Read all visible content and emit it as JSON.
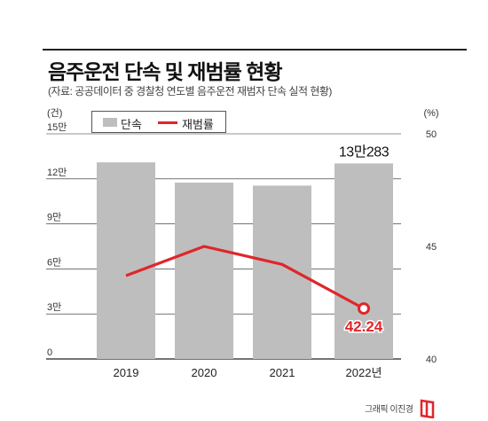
{
  "header": {
    "title": "음주운전 단속 및 재범률 현황",
    "subtitle": "(자료: 공공데이터 중 경찰청 연도별 음주운전 재범자 단속 실적 현황)"
  },
  "legend": {
    "bar_label": "단속",
    "line_label": "재범률"
  },
  "footer": {
    "credit": "그래픽 이진경"
  },
  "colors": {
    "bar": "#bebebe",
    "line": "#e0262a",
    "grid": "#222222"
  },
  "chart_data": {
    "type": "bar",
    "categories": [
      "2019",
      "2020",
      "2021",
      "2022년"
    ],
    "left_axis": {
      "unit_label": "(건)",
      "ticks": [
        0,
        30000,
        60000,
        90000,
        120000,
        150000
      ],
      "tick_labels": [
        "0",
        "3만",
        "6만",
        "9만",
        "12만",
        "15만"
      ],
      "ylim": [
        0,
        150000
      ]
    },
    "right_axis": {
      "unit_label": "(%)",
      "ticks": [
        40,
        45,
        50
      ],
      "tick_labels": [
        "40",
        "45",
        "50"
      ],
      "ylim": [
        40,
        50
      ]
    },
    "series": [
      {
        "name": "단속",
        "type": "bar",
        "axis": "left",
        "values": [
          131000,
          117500,
          115500,
          130283
        ]
      },
      {
        "name": "재범률",
        "type": "line",
        "axis": "right",
        "values": [
          43.7,
          45.0,
          44.2,
          42.24
        ]
      }
    ],
    "annotations": [
      {
        "series": "단속",
        "index": 3,
        "text": "13만283"
      },
      {
        "series": "재범률",
        "index": 3,
        "text": "42.24"
      }
    ]
  }
}
